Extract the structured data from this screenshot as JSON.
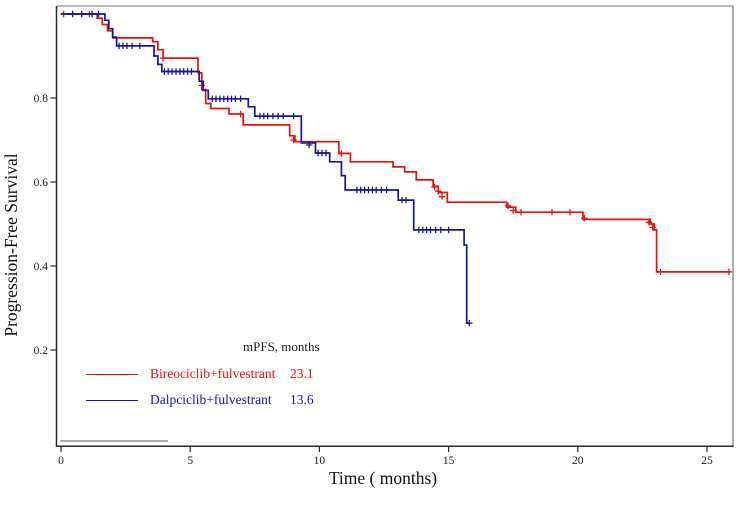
{
  "chart_data": {
    "type": "line",
    "subtype": "kaplan-meier-step",
    "title": "",
    "xlabel": "Time ( months)",
    "ylabel": "Progression-Free Survival",
    "xlim": [
      0,
      26.2
    ],
    "ylim": [
      0,
      1.02
    ],
    "x_ticks": [
      0,
      5,
      10,
      15,
      20,
      25
    ],
    "y_ticks": [
      0.2,
      0.4,
      0.6,
      0.8
    ],
    "grid": false,
    "legend_position": "inside-bottom-left",
    "legend": {
      "header": "mPFS, months",
      "entries": [
        {
          "label": "Bireociclib+fulvestrant",
          "value": "23.1"
        },
        {
          "label": "Dalpciclib+fulvestrant",
          "value": "13.6"
        }
      ]
    },
    "series": [
      {
        "key": "bireociclib",
        "name": "Bireociclib+fulvestrant",
        "mPFS_months": 23.1,
        "color": "#e8120b",
        "end": 25.9,
        "steps": [
          [
            0,
            1.0
          ],
          [
            1.4,
            0.99
          ],
          [
            1.6,
            0.975
          ],
          [
            1.8,
            0.96
          ],
          [
            2.0,
            0.943
          ],
          [
            3.55,
            0.934
          ],
          [
            3.75,
            0.915
          ],
          [
            3.95,
            0.895
          ],
          [
            5.3,
            0.86
          ],
          [
            5.45,
            0.82
          ],
          [
            5.6,
            0.787
          ],
          [
            5.8,
            0.775
          ],
          [
            6.5,
            0.762
          ],
          [
            7.05,
            0.736
          ],
          [
            8.85,
            0.71
          ],
          [
            9.05,
            0.696
          ],
          [
            10.75,
            0.668
          ],
          [
            11.2,
            0.648
          ],
          [
            12.85,
            0.636
          ],
          [
            13.3,
            0.624
          ],
          [
            13.75,
            0.605
          ],
          [
            14.4,
            0.59
          ],
          [
            14.6,
            0.575
          ],
          [
            14.95,
            0.552
          ],
          [
            17.25,
            0.54
          ],
          [
            17.6,
            0.528
          ],
          [
            20.2,
            0.511
          ],
          [
            22.8,
            0.5
          ],
          [
            22.95,
            0.486
          ],
          [
            23.05,
            0.386
          ]
        ],
        "censors": [
          [
            0.1,
            1.0
          ],
          [
            1.1,
            1.0
          ],
          [
            3.95,
            0.895
          ],
          [
            5.45,
            0.83
          ],
          [
            6.95,
            0.762
          ],
          [
            9.0,
            0.7
          ],
          [
            10.85,
            0.668
          ],
          [
            14.45,
            0.588
          ],
          [
            14.6,
            0.578
          ],
          [
            14.75,
            0.565
          ],
          [
            17.3,
            0.543
          ],
          [
            17.5,
            0.532
          ],
          [
            17.8,
            0.528
          ],
          [
            19.0,
            0.528
          ],
          [
            19.7,
            0.528
          ],
          [
            20.25,
            0.514
          ],
          [
            22.75,
            0.504
          ],
          [
            22.9,
            0.492
          ],
          [
            23.2,
            0.386
          ],
          [
            25.85,
            0.386
          ]
        ]
      },
      {
        "key": "dalpciclib",
        "name": "Dalpciclib+fulvestrant",
        "mPFS_months": 13.6,
        "color": "#16169c",
        "end": 15.8,
        "steps": [
          [
            0,
            1.0
          ],
          [
            1.7,
            0.985
          ],
          [
            1.85,
            0.965
          ],
          [
            2.0,
            0.945
          ],
          [
            2.15,
            0.924
          ],
          [
            3.6,
            0.9
          ],
          [
            3.75,
            0.88
          ],
          [
            3.9,
            0.863
          ],
          [
            5.35,
            0.84
          ],
          [
            5.5,
            0.818
          ],
          [
            5.7,
            0.798
          ],
          [
            7.25,
            0.779
          ],
          [
            7.5,
            0.757
          ],
          [
            9.3,
            0.693
          ],
          [
            9.85,
            0.669
          ],
          [
            10.4,
            0.648
          ],
          [
            10.85,
            0.615
          ],
          [
            11.0,
            0.581
          ],
          [
            13.05,
            0.557
          ],
          [
            13.65,
            0.486
          ],
          [
            15.6,
            0.45
          ],
          [
            15.7,
            0.264
          ]
        ],
        "censors": [
          [
            0.45,
            1.0
          ],
          [
            0.8,
            1.0
          ],
          [
            1.2,
            1.0
          ],
          [
            1.45,
            1.0
          ],
          [
            2.25,
            0.924
          ],
          [
            2.4,
            0.924
          ],
          [
            2.55,
            0.924
          ],
          [
            2.75,
            0.924
          ],
          [
            3.05,
            0.924
          ],
          [
            4.0,
            0.863
          ],
          [
            4.15,
            0.863
          ],
          [
            4.3,
            0.863
          ],
          [
            4.45,
            0.863
          ],
          [
            4.6,
            0.863
          ],
          [
            4.75,
            0.863
          ],
          [
            4.9,
            0.863
          ],
          [
            5.05,
            0.863
          ],
          [
            5.85,
            0.798
          ],
          [
            6.0,
            0.798
          ],
          [
            6.15,
            0.798
          ],
          [
            6.3,
            0.798
          ],
          [
            6.45,
            0.798
          ],
          [
            6.6,
            0.798
          ],
          [
            6.75,
            0.798
          ],
          [
            6.95,
            0.798
          ],
          [
            7.7,
            0.757
          ],
          [
            7.85,
            0.757
          ],
          [
            8.0,
            0.757
          ],
          [
            8.2,
            0.757
          ],
          [
            8.4,
            0.757
          ],
          [
            8.6,
            0.757
          ],
          [
            9.0,
            0.757
          ],
          [
            9.6,
            0.688
          ],
          [
            9.95,
            0.669
          ],
          [
            10.1,
            0.669
          ],
          [
            10.25,
            0.669
          ],
          [
            11.45,
            0.581
          ],
          [
            11.6,
            0.581
          ],
          [
            11.75,
            0.581
          ],
          [
            11.9,
            0.581
          ],
          [
            12.05,
            0.581
          ],
          [
            12.2,
            0.581
          ],
          [
            12.4,
            0.581
          ],
          [
            12.6,
            0.581
          ],
          [
            13.2,
            0.557
          ],
          [
            13.35,
            0.557
          ],
          [
            13.85,
            0.486
          ],
          [
            14.0,
            0.486
          ],
          [
            14.15,
            0.486
          ],
          [
            14.3,
            0.486
          ],
          [
            14.5,
            0.486
          ],
          [
            14.7,
            0.486
          ],
          [
            15.0,
            0.486
          ],
          [
            15.8,
            0.264
          ]
        ]
      }
    ]
  },
  "colors": {
    "axis": "#2b2b2b",
    "border_gray": "#a3a3a3",
    "artifact_gray": "#8f8f8f",
    "background": "#ffffff"
  }
}
